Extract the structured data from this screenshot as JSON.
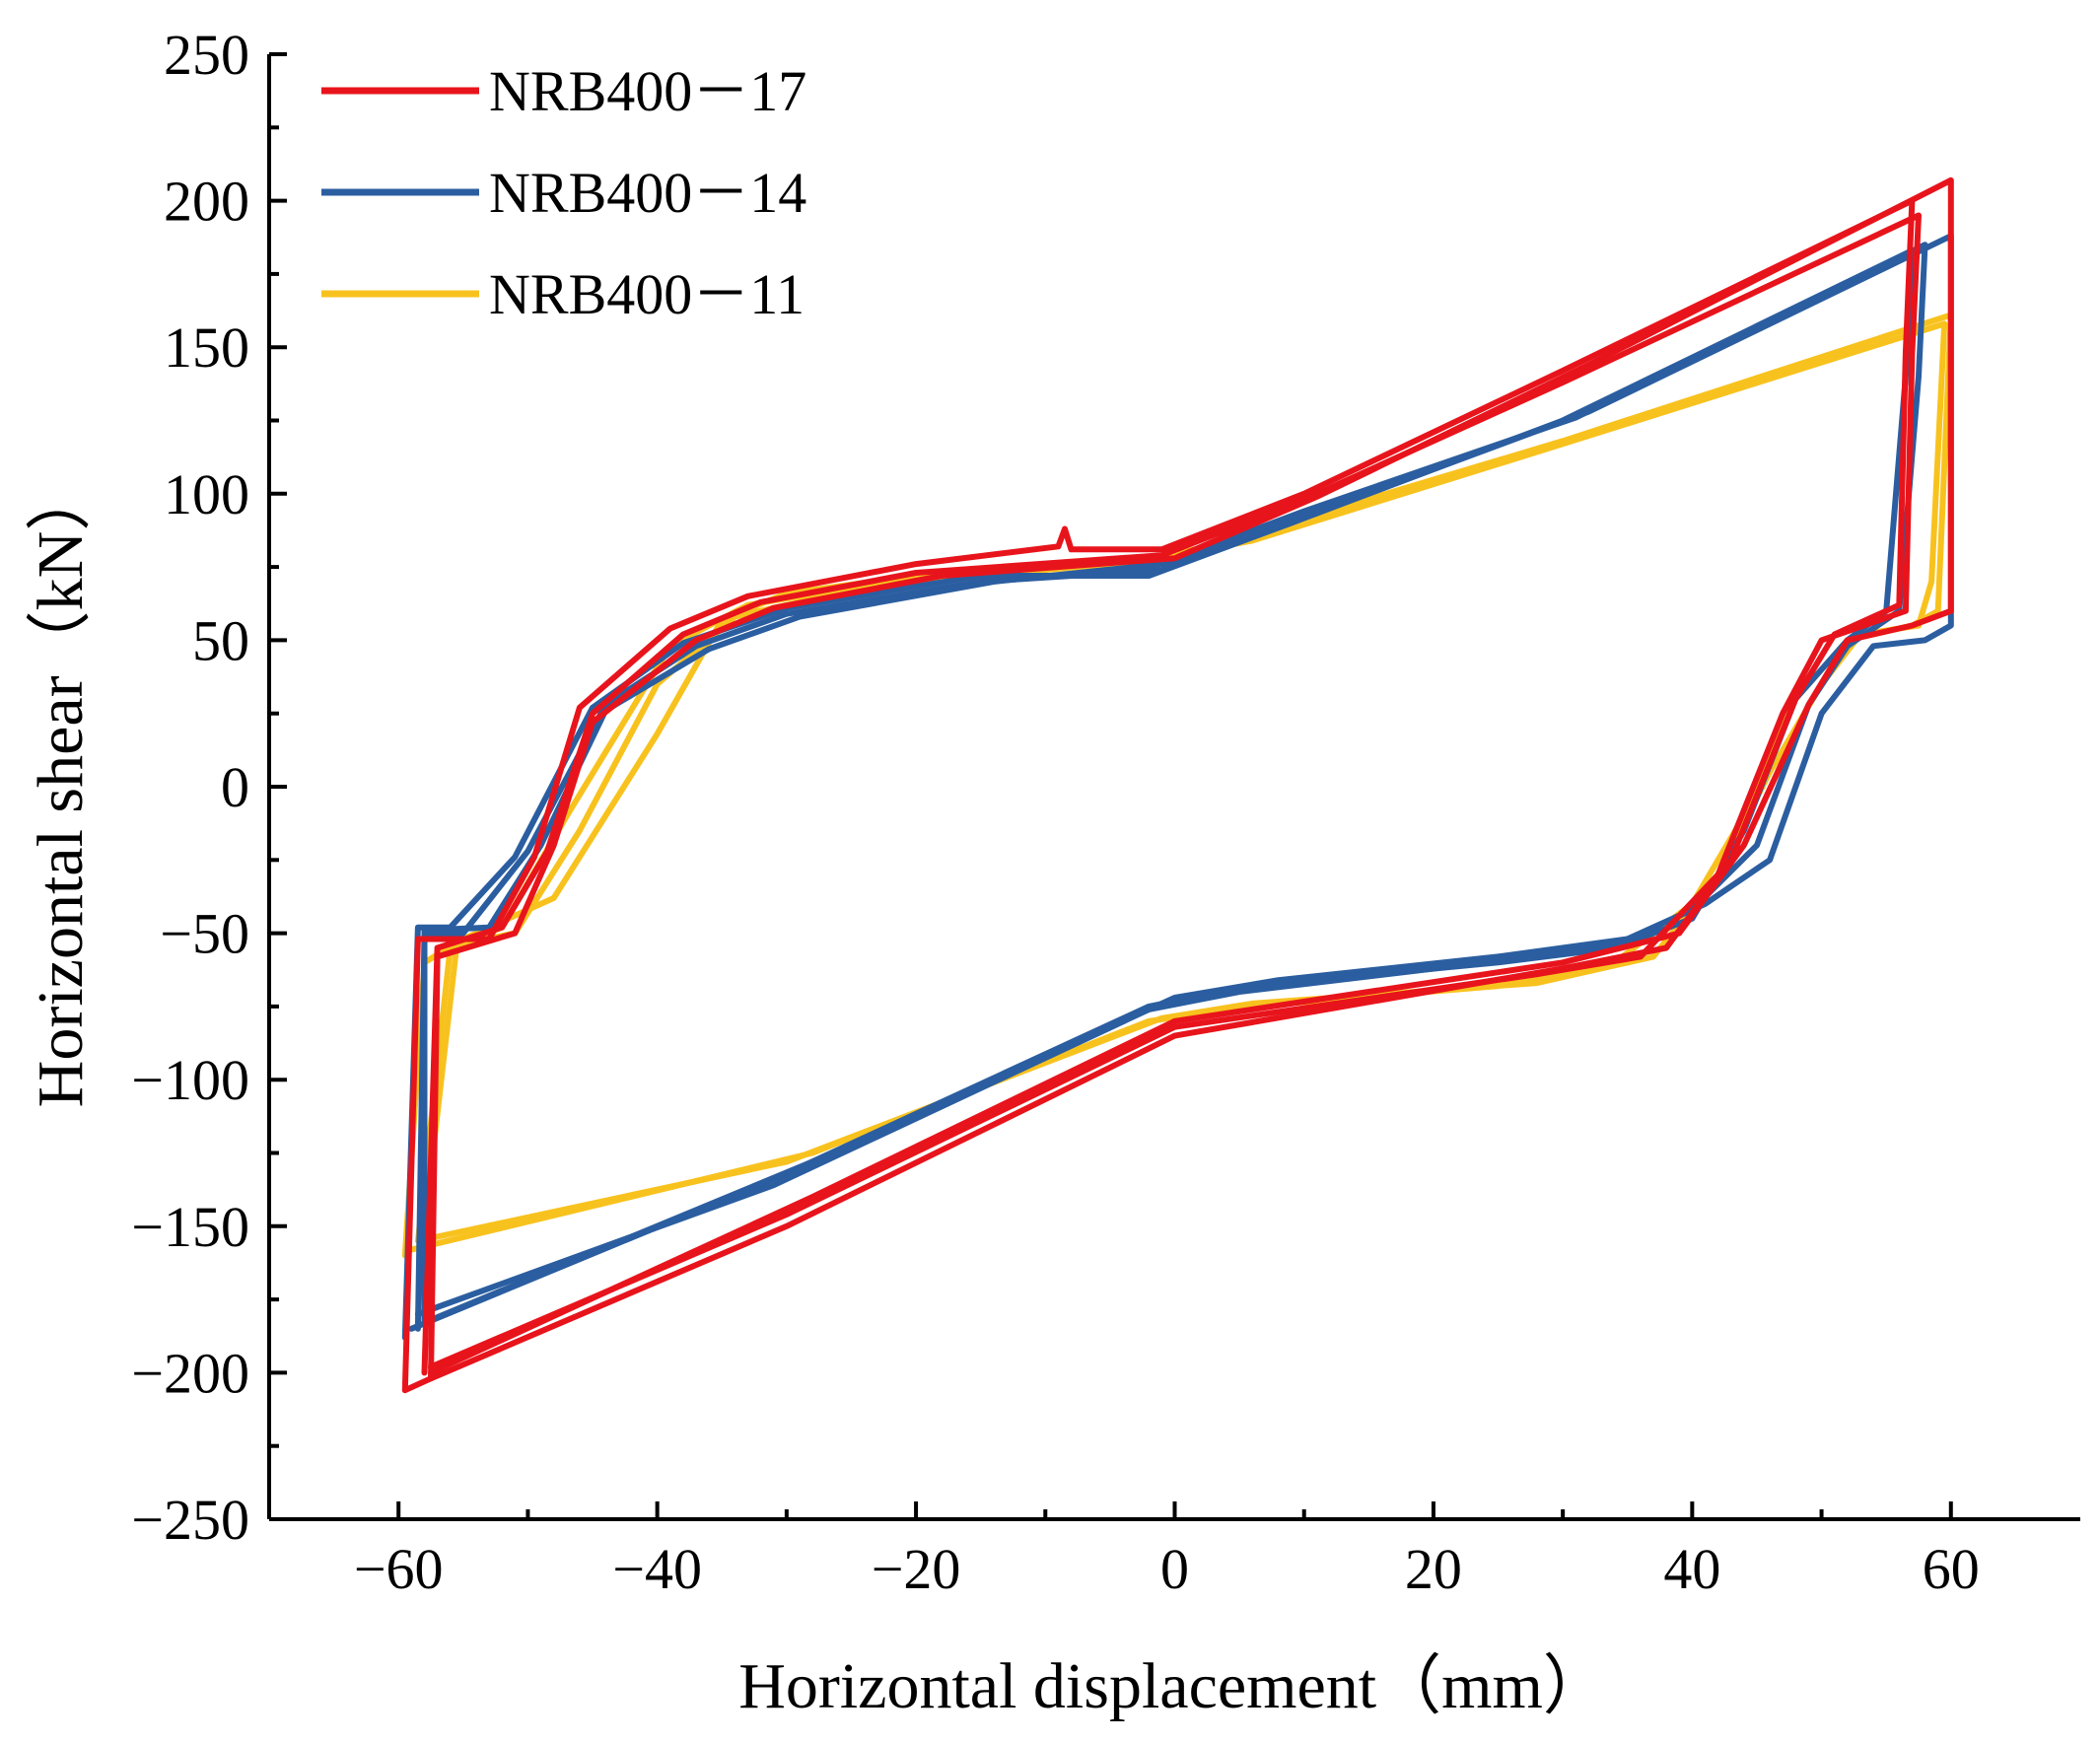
{
  "chart_data": {
    "type": "line",
    "title": "",
    "xlabel": "Horizontal displacement（mm）",
    "ylabel": "Horizontal shear（kN）",
    "xlim": [
      -70,
      70
    ],
    "ylim": [
      -250,
      250
    ],
    "xticks": [
      -60,
      -40,
      -20,
      0,
      20,
      40,
      60
    ],
    "yticks": [
      250,
      200,
      150,
      100,
      50,
      0,
      -50,
      -100,
      -150,
      -200,
      -250
    ],
    "xtick_labels": [
      "−60",
      "−40",
      "−20",
      "0",
      "20",
      "40",
      "60"
    ],
    "ytick_labels": [
      "250",
      "200",
      "150",
      "100",
      "50",
      "0",
      "−50",
      "−100",
      "−150",
      "−200",
      "−250"
    ],
    "legend_position": "top-left",
    "series": [
      {
        "name": "NRB400－17",
        "color": "#e8141c",
        "loops": [
          [
            [
              -59.5,
              -206
            ],
            [
              -58.5,
              -52
            ],
            [
              -53,
              -52
            ],
            [
              -49.5,
              -24
            ],
            [
              -46,
              27
            ],
            [
              -39,
              54
            ],
            [
              -33,
              65
            ],
            [
              -20,
              76
            ],
            [
              -9,
              82
            ],
            [
              -8.5,
              88
            ],
            [
              -8,
              81
            ],
            [
              -1,
              81
            ],
            [
              10,
              100
            ],
            [
              30,
              142
            ],
            [
              57,
              200
            ],
            [
              56.5,
              148
            ],
            [
              56,
              62
            ],
            [
              51,
              52
            ],
            [
              48,
              30
            ],
            [
              43,
              -25
            ],
            [
              38,
              -55
            ],
            [
              30,
              -62
            ],
            [
              0,
              -85
            ],
            [
              -30,
              -150
            ],
            [
              -57.5,
              -202
            ],
            [
              -59.5,
              -206
            ]
          ],
          [
            [
              -58,
              -200
            ],
            [
              -57,
              -55
            ],
            [
              -52,
              -48
            ],
            [
              -48.5,
              -22
            ],
            [
              -45,
              25
            ],
            [
              -38,
              52
            ],
            [
              -32,
              63
            ],
            [
              -20,
              73
            ],
            [
              -1,
              79
            ],
            [
              10,
              98
            ],
            [
              30,
              138
            ],
            [
              57.5,
              195
            ],
            [
              57,
              148
            ],
            [
              56.5,
              60
            ],
            [
              50,
              50
            ],
            [
              47,
              25
            ],
            [
              42,
              -30
            ],
            [
              36,
              -58
            ],
            [
              28,
              -64
            ],
            [
              0,
              -82
            ],
            [
              -30,
              -146
            ],
            [
              -57.5,
              -198
            ]
          ],
          [
            [
              -57.5,
              -202
            ],
            [
              -57,
              -58
            ],
            [
              -51,
              -50
            ],
            [
              -48,
              -20
            ],
            [
              -45,
              22
            ],
            [
              -37,
              50
            ],
            [
              -31,
              61
            ],
            [
              -18,
              72
            ],
            [
              0,
              78
            ],
            [
              11,
              99
            ],
            [
              32,
              144
            ],
            [
              60,
              207
            ],
            [
              60,
              60
            ],
            [
              57,
              55
            ],
            [
              52,
              50
            ],
            [
              49,
              28
            ],
            [
              44,
              -20
            ],
            [
              39,
              -50
            ],
            [
              30,
              -60
            ],
            [
              0,
              -80
            ],
            [
              -28,
              -140
            ],
            [
              -57.5,
              -200
            ]
          ]
        ]
      },
      {
        "name": "NRB400－14",
        "color": "#2b5ea0",
        "loops": [
          [
            [
              -59.5,
              -188
            ],
            [
              -58.5,
              -48
            ],
            [
              -56,
              -48
            ],
            [
              -51,
              -24
            ],
            [
              -45,
              27
            ],
            [
              -38,
              49
            ],
            [
              -30,
              61
            ],
            [
              -15,
              72
            ],
            [
              -2,
              72
            ],
            [
              9,
              90
            ],
            [
              30,
              125
            ],
            [
              57,
              183
            ],
            [
              56.5,
              140
            ],
            [
              55,
              60
            ],
            [
              52,
              50
            ],
            [
              48,
              30
            ],
            [
              44,
              -15
            ],
            [
              40,
              -45
            ],
            [
              34,
              -55
            ],
            [
              25,
              -60
            ],
            [
              6,
              -68
            ],
            [
              -2,
              -75
            ],
            [
              -30,
              -132
            ],
            [
              -59,
              -185
            ]
          ],
          [
            [
              -58.5,
              -185
            ],
            [
              -58,
              -50
            ],
            [
              -55,
              -50
            ],
            [
              -50,
              -22
            ],
            [
              -44,
              28
            ],
            [
              -37,
              48
            ],
            [
              -30,
              59
            ],
            [
              -15,
              70
            ],
            [
              -1,
              74
            ],
            [
              10,
              92
            ],
            [
              32,
              128
            ],
            [
              60,
              188
            ],
            [
              60,
              55
            ],
            [
              58,
              50
            ],
            [
              54,
              48
            ],
            [
              50,
              25
            ],
            [
              46,
              -25
            ],
            [
              41,
              -40
            ],
            [
              35,
              -52
            ],
            [
              25,
              -58
            ],
            [
              8,
              -66
            ],
            [
              0,
              -72
            ],
            [
              -28,
              -128
            ],
            [
              -57.5,
              -182
            ]
          ],
          [
            [
              -58,
              -183
            ],
            [
              -58,
              -49
            ],
            [
              -53,
              -48
            ],
            [
              -49,
              -20
            ],
            [
              -44,
              26
            ],
            [
              -36,
              47
            ],
            [
              -29,
              58
            ],
            [
              -14,
              70
            ],
            [
              -1,
              76
            ],
            [
              10,
              94
            ],
            [
              31,
              126
            ],
            [
              58,
              185
            ],
            [
              57.5,
              140
            ],
            [
              56,
              60
            ],
            [
              52,
              48
            ],
            [
              49,
              28
            ],
            [
              45,
              -20
            ],
            [
              40,
              -42
            ],
            [
              34,
              -54
            ],
            [
              24,
              -60
            ],
            [
              5,
              -70
            ],
            [
              -2,
              -76
            ],
            [
              -31,
              -136
            ],
            [
              -58.5,
              -180
            ]
          ]
        ]
      },
      {
        "name": "NRB400－11",
        "color": "#f8c21e",
        "loops": [
          [
            [
              -59.5,
              -160
            ],
            [
              -58,
              -60
            ],
            [
              -55,
              -52
            ],
            [
              -48,
              -38
            ],
            [
              -40,
              18
            ],
            [
              -35,
              57
            ],
            [
              -30,
              66
            ],
            [
              -20,
              72
            ],
            [
              -2,
              77
            ],
            [
              5,
              85
            ],
            [
              30,
              118
            ],
            [
              60,
              161
            ],
            [
              59,
              60
            ],
            [
              57,
              55
            ],
            [
              52,
              50
            ],
            [
              48,
              30
            ],
            [
              44,
              -10
            ],
            [
              40,
              -40
            ],
            [
              34,
              -60
            ],
            [
              25,
              -68
            ],
            [
              6,
              -75
            ],
            [
              -2,
              -80
            ],
            [
              -28,
              -125
            ],
            [
              -59,
              -158
            ]
          ],
          [
            [
              -58.5,
              -155
            ],
            [
              -56,
              -55
            ],
            [
              -52,
              -48
            ],
            [
              -47,
              -10
            ],
            [
              -39,
              48
            ],
            [
              -33,
              62
            ],
            [
              -25,
              68
            ],
            [
              -10,
              75
            ],
            [
              0,
              79
            ],
            [
              6,
              84
            ],
            [
              30,
              117
            ],
            [
              59.5,
              158
            ],
            [
              58.5,
              70
            ],
            [
              57.5,
              55
            ],
            [
              53,
              52
            ],
            [
              50,
              35
            ],
            [
              46,
              5
            ],
            [
              42,
              -30
            ],
            [
              37,
              -58
            ],
            [
              28,
              -67
            ],
            [
              6,
              -74
            ],
            [
              -1,
              -79
            ],
            [
              -30,
              -128
            ],
            [
              -58.5,
              -155
            ]
          ],
          [
            [
              -58,
              -150
            ],
            [
              -55.5,
              -54
            ],
            [
              -51,
              -50
            ],
            [
              -46,
              -15
            ],
            [
              -40,
              35
            ],
            [
              -34,
              58
            ],
            [
              -28,
              64
            ],
            [
              -15,
              72
            ],
            [
              0,
              78
            ]
          ]
        ]
      }
    ]
  }
}
